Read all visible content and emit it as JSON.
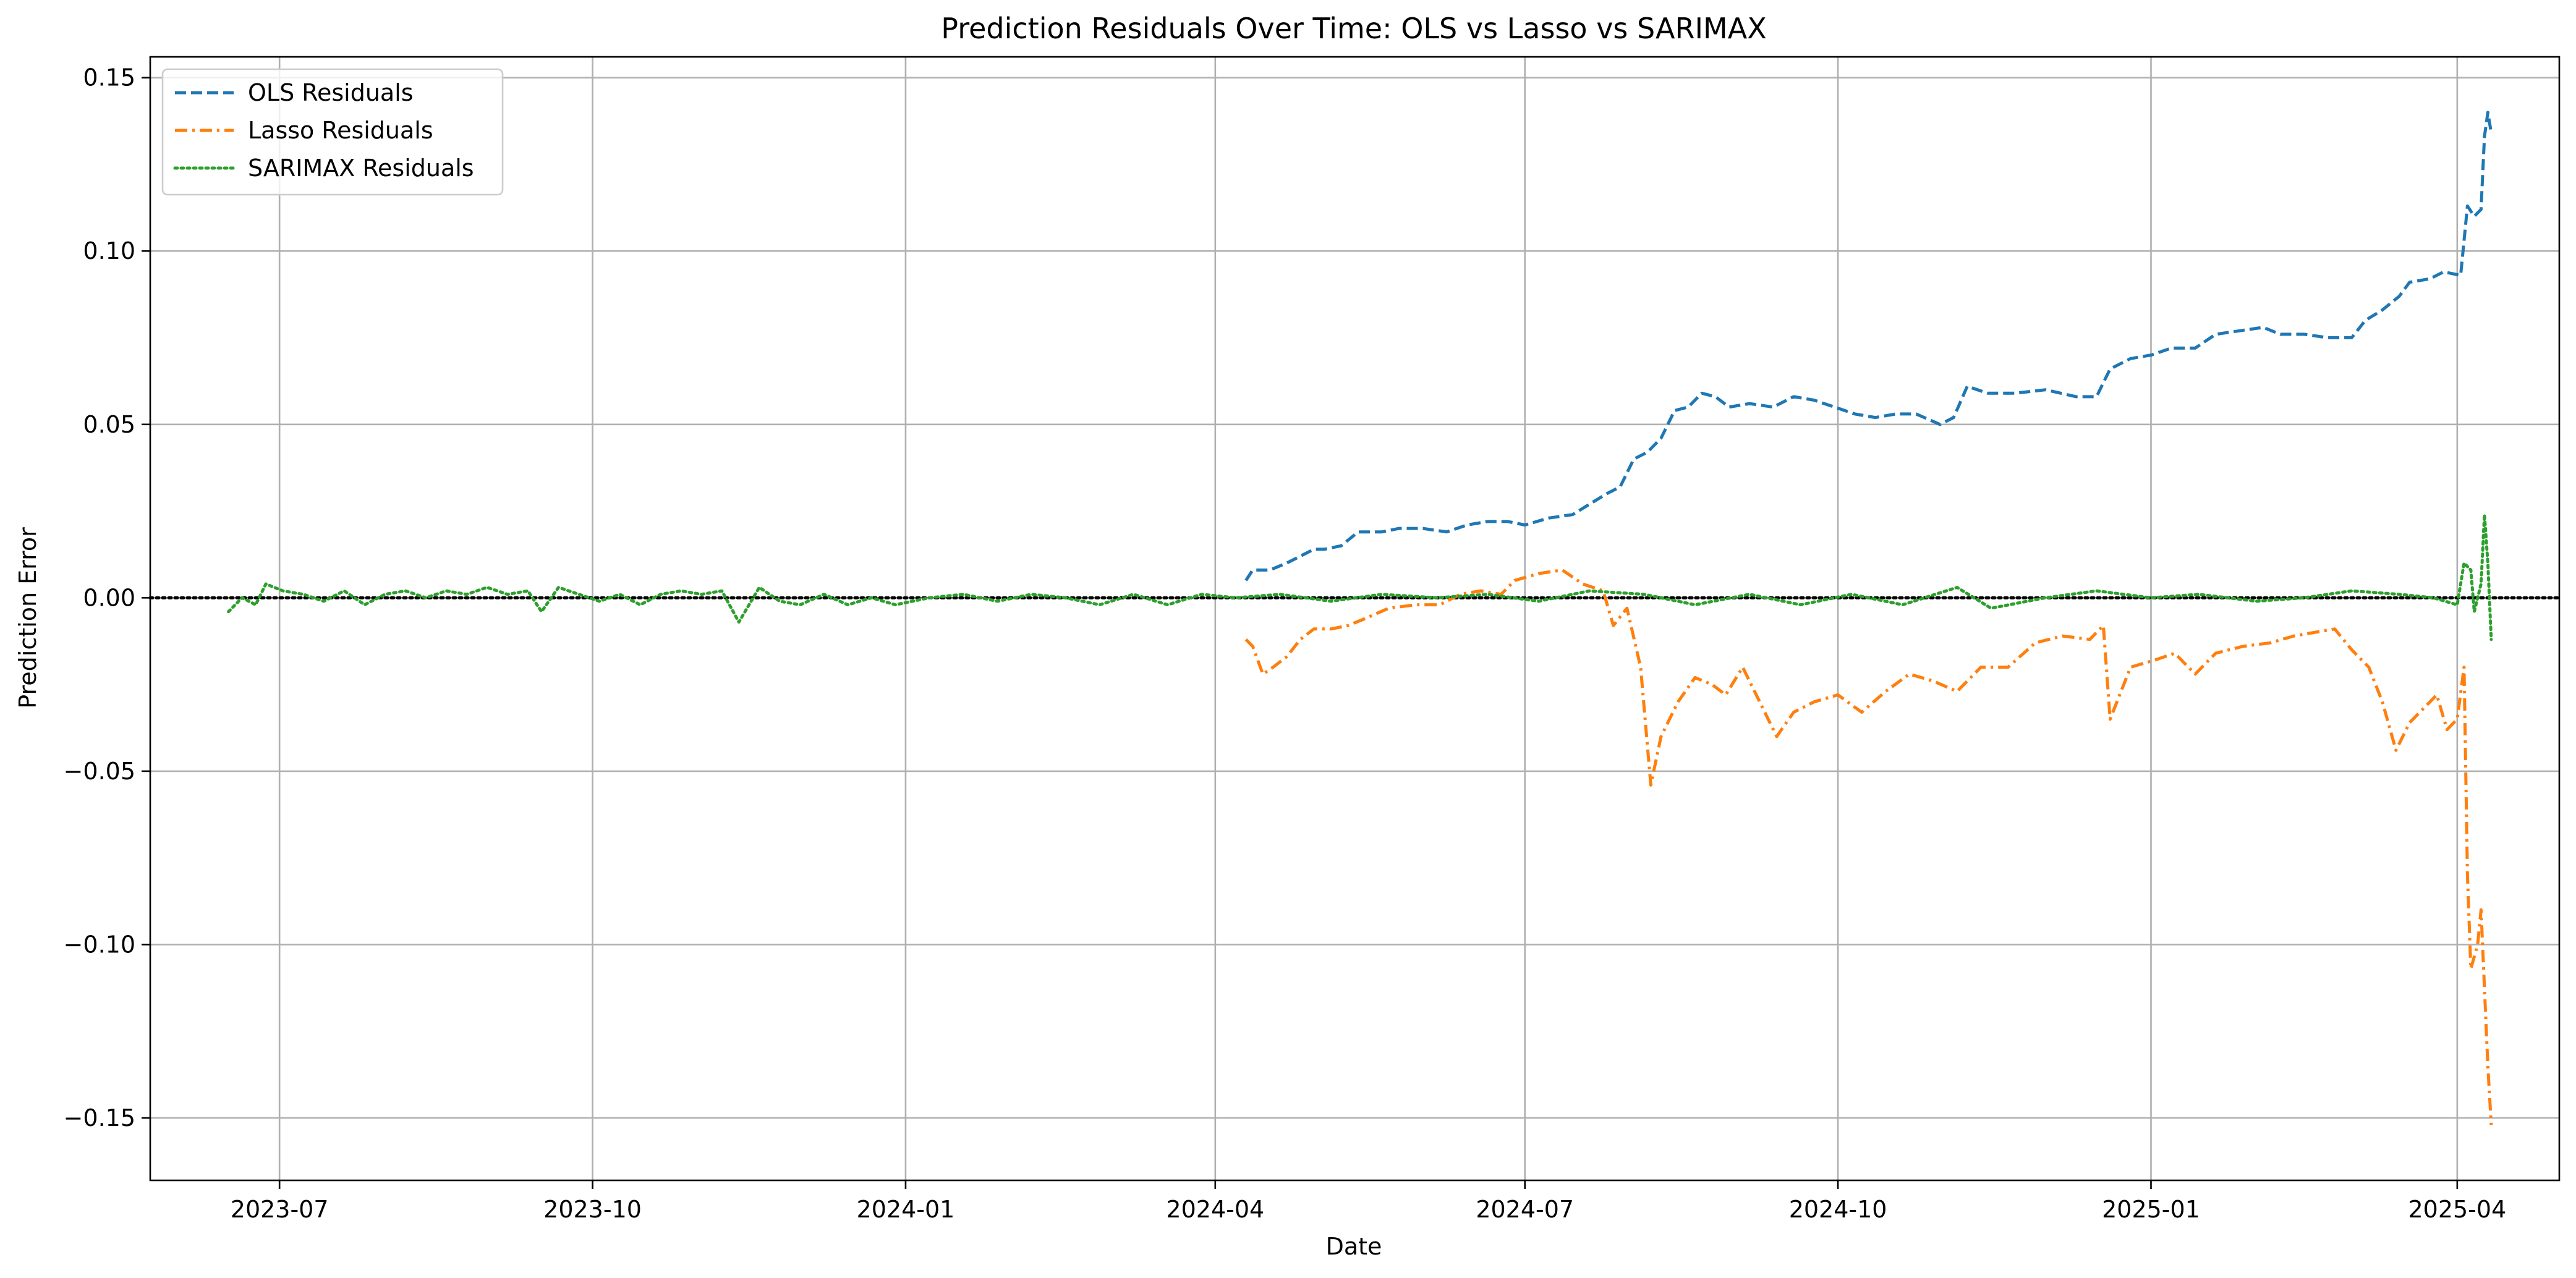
{
  "chart_data": {
    "type": "line",
    "title": "Prediction Residuals Over Time: OLS vs Lasso vs SARIMAX",
    "xlabel": "Date",
    "ylabel": "Prediction Error",
    "x_axis": "date",
    "xlim": [
      "2023-05-24",
      "2025-05-01"
    ],
    "ylim": [
      -0.168,
      0.156
    ],
    "x_ticks": [
      "2023-07",
      "2023-10",
      "2024-01",
      "2024-04",
      "2024-07",
      "2024-10",
      "2025-01",
      "2025-04"
    ],
    "x_tick_dates": [
      "2023-07-01",
      "2023-10-01",
      "2024-01-01",
      "2024-04-01",
      "2024-07-01",
      "2024-10-01",
      "2025-01-01",
      "2025-04-01"
    ],
    "y_ticks": [
      -0.15,
      -0.1,
      -0.05,
      0.0,
      0.05,
      0.1,
      0.15
    ],
    "y_tick_labels": [
      "−0.15",
      "−0.10",
      "−0.05",
      "0.00",
      "0.05",
      "0.10",
      "0.15"
    ],
    "grid": true,
    "legend_position": "top-left",
    "reference_line": {
      "y": 0.0,
      "style": "dotted",
      "color": "#000000"
    },
    "series": [
      {
        "name": "OLS Residuals",
        "color": "#1f77b4",
        "dash": "dashed",
        "points": [
          [
            "2024-04-10",
            0.005
          ],
          [
            "2024-04-12",
            0.008
          ],
          [
            "2024-04-17",
            0.008
          ],
          [
            "2024-04-22",
            0.01
          ],
          [
            "2024-04-26",
            0.012
          ],
          [
            "2024-04-30",
            0.014
          ],
          [
            "2024-05-03",
            0.014
          ],
          [
            "2024-05-08",
            0.015
          ],
          [
            "2024-05-13",
            0.019
          ],
          [
            "2024-05-20",
            0.019
          ],
          [
            "2024-05-25",
            0.02
          ],
          [
            "2024-06-01",
            0.02
          ],
          [
            "2024-06-08",
            0.019
          ],
          [
            "2024-06-14",
            0.021
          ],
          [
            "2024-06-20",
            0.022
          ],
          [
            "2024-06-26",
            0.022
          ],
          [
            "2024-07-01",
            0.021
          ],
          [
            "2024-07-08",
            0.023
          ],
          [
            "2024-07-15",
            0.024
          ],
          [
            "2024-07-20",
            0.027
          ],
          [
            "2024-07-25",
            0.03
          ],
          [
            "2024-07-29",
            0.032
          ],
          [
            "2024-08-02",
            0.04
          ],
          [
            "2024-08-06",
            0.042
          ],
          [
            "2024-08-10",
            0.046
          ],
          [
            "2024-08-14",
            0.054
          ],
          [
            "2024-08-18",
            0.055
          ],
          [
            "2024-08-22",
            0.059
          ],
          [
            "2024-08-26",
            0.058
          ],
          [
            "2024-08-30",
            0.055
          ],
          [
            "2024-09-05",
            0.056
          ],
          [
            "2024-09-12",
            0.055
          ],
          [
            "2024-09-18",
            0.058
          ],
          [
            "2024-09-24",
            0.057
          ],
          [
            "2024-09-30",
            0.055
          ],
          [
            "2024-10-06",
            0.053
          ],
          [
            "2024-10-12",
            0.052
          ],
          [
            "2024-10-18",
            0.053
          ],
          [
            "2024-10-24",
            0.053
          ],
          [
            "2024-10-31",
            0.05
          ],
          [
            "2024-11-04",
            0.052
          ],
          [
            "2024-11-08",
            0.061
          ],
          [
            "2024-11-14",
            0.059
          ],
          [
            "2024-11-22",
            0.059
          ],
          [
            "2024-12-01",
            0.06
          ],
          [
            "2024-12-10",
            0.058
          ],
          [
            "2024-12-16",
            0.058
          ],
          [
            "2024-12-20",
            0.066
          ],
          [
            "2024-12-26",
            0.069
          ],
          [
            "2025-01-01",
            0.07
          ],
          [
            "2025-01-07",
            0.072
          ],
          [
            "2025-01-14",
            0.072
          ],
          [
            "2025-01-20",
            0.076
          ],
          [
            "2025-01-27",
            0.077
          ],
          [
            "2025-02-03",
            0.078
          ],
          [
            "2025-02-08",
            0.076
          ],
          [
            "2025-02-15",
            0.076
          ],
          [
            "2025-02-22",
            0.075
          ],
          [
            "2025-03-01",
            0.075
          ],
          [
            "2025-03-05",
            0.08
          ],
          [
            "2025-03-10",
            0.083
          ],
          [
            "2025-03-15",
            0.087
          ],
          [
            "2025-03-18",
            0.091
          ],
          [
            "2025-03-24",
            0.092
          ],
          [
            "2025-03-28",
            0.094
          ],
          [
            "2025-04-02",
            0.093
          ],
          [
            "2025-04-04",
            0.113
          ],
          [
            "2025-04-06",
            0.11
          ],
          [
            "2025-04-08",
            0.112
          ],
          [
            "2025-04-09",
            0.133
          ],
          [
            "2025-04-10",
            0.14
          ],
          [
            "2025-04-11",
            0.134
          ]
        ]
      },
      {
        "name": "Lasso Residuals",
        "color": "#ff7f0e",
        "dash": "dashdot",
        "points": [
          [
            "2024-04-10",
            -0.012
          ],
          [
            "2024-04-12",
            -0.014
          ],
          [
            "2024-04-15",
            -0.022
          ],
          [
            "2024-04-18",
            -0.02
          ],
          [
            "2024-04-22",
            -0.017
          ],
          [
            "2024-04-26",
            -0.012
          ],
          [
            "2024-04-30",
            -0.009
          ],
          [
            "2024-05-05",
            -0.009
          ],
          [
            "2024-05-10",
            -0.008
          ],
          [
            "2024-05-15",
            -0.006
          ],
          [
            "2024-05-22",
            -0.003
          ],
          [
            "2024-05-30",
            -0.002
          ],
          [
            "2024-06-06",
            -0.002
          ],
          [
            "2024-06-12",
            0.001
          ],
          [
            "2024-06-18",
            0.002
          ],
          [
            "2024-06-24",
            0.001
          ],
          [
            "2024-06-28",
            0.005
          ],
          [
            "2024-07-05",
            0.007
          ],
          [
            "2024-07-12",
            0.008
          ],
          [
            "2024-07-18",
            0.004
          ],
          [
            "2024-07-24",
            0.002
          ],
          [
            "2024-07-27",
            -0.008
          ],
          [
            "2024-07-31",
            -0.003
          ],
          [
            "2024-08-04",
            -0.02
          ],
          [
            "2024-08-07",
            -0.054
          ],
          [
            "2024-08-10",
            -0.04
          ],
          [
            "2024-08-15",
            -0.03
          ],
          [
            "2024-08-20",
            -0.023
          ],
          [
            "2024-08-25",
            -0.025
          ],
          [
            "2024-08-29",
            -0.028
          ],
          [
            "2024-09-03",
            -0.02
          ],
          [
            "2024-09-08",
            -0.03
          ],
          [
            "2024-09-13",
            -0.04
          ],
          [
            "2024-09-18",
            -0.033
          ],
          [
            "2024-09-24",
            -0.03
          ],
          [
            "2024-10-01",
            -0.028
          ],
          [
            "2024-10-08",
            -0.033
          ],
          [
            "2024-10-15",
            -0.027
          ],
          [
            "2024-10-22",
            -0.022
          ],
          [
            "2024-10-29",
            -0.024
          ],
          [
            "2024-11-05",
            -0.027
          ],
          [
            "2024-11-12",
            -0.02
          ],
          [
            "2024-11-20",
            -0.02
          ],
          [
            "2024-11-28",
            -0.013
          ],
          [
            "2024-12-06",
            -0.011
          ],
          [
            "2024-12-14",
            -0.012
          ],
          [
            "2024-12-18",
            -0.008
          ],
          [
            "2024-12-20",
            -0.035
          ],
          [
            "2024-12-26",
            -0.02
          ],
          [
            "2025-01-02",
            -0.018
          ],
          [
            "2025-01-08",
            -0.016
          ],
          [
            "2025-01-14",
            -0.022
          ],
          [
            "2025-01-20",
            -0.016
          ],
          [
            "2025-01-28",
            -0.014
          ],
          [
            "2025-02-05",
            -0.013
          ],
          [
            "2025-02-12",
            -0.011
          ],
          [
            "2025-02-18",
            -0.01
          ],
          [
            "2025-02-24",
            -0.009
          ],
          [
            "2025-03-01",
            -0.015
          ],
          [
            "2025-03-06",
            -0.02
          ],
          [
            "2025-03-10",
            -0.03
          ],
          [
            "2025-03-14",
            -0.044
          ],
          [
            "2025-03-18",
            -0.036
          ],
          [
            "2025-03-22",
            -0.032
          ],
          [
            "2025-03-26",
            -0.028
          ],
          [
            "2025-03-29",
            -0.038
          ],
          [
            "2025-04-01",
            -0.035
          ],
          [
            "2025-04-03",
            -0.02
          ],
          [
            "2025-04-04",
            -0.08
          ],
          [
            "2025-04-05",
            -0.107
          ],
          [
            "2025-04-07",
            -0.1
          ],
          [
            "2025-04-08",
            -0.09
          ],
          [
            "2025-04-10",
            -0.135
          ],
          [
            "2025-04-11",
            -0.152
          ]
        ]
      },
      {
        "name": "SARIMAX Residuals",
        "color": "#2ca02c",
        "dash": "dotted",
        "points": [
          [
            "2023-06-16",
            -0.004
          ],
          [
            "2023-06-20",
            0.0
          ],
          [
            "2023-06-24",
            -0.002
          ],
          [
            "2023-06-27",
            0.004
          ],
          [
            "2023-07-02",
            0.002
          ],
          [
            "2023-07-08",
            0.001
          ],
          [
            "2023-07-14",
            -0.001
          ],
          [
            "2023-07-20",
            0.002
          ],
          [
            "2023-07-26",
            -0.002
          ],
          [
            "2023-08-01",
            0.001
          ],
          [
            "2023-08-07",
            0.002
          ],
          [
            "2023-08-13",
            0.0
          ],
          [
            "2023-08-19",
            0.002
          ],
          [
            "2023-08-25",
            0.001
          ],
          [
            "2023-08-31",
            0.003
          ],
          [
            "2023-09-06",
            0.001
          ],
          [
            "2023-09-12",
            0.002
          ],
          [
            "2023-09-16",
            -0.004
          ],
          [
            "2023-09-21",
            0.003
          ],
          [
            "2023-09-27",
            0.001
          ],
          [
            "2023-10-03",
            -0.001
          ],
          [
            "2023-10-09",
            0.001
          ],
          [
            "2023-10-15",
            -0.002
          ],
          [
            "2023-10-21",
            0.001
          ],
          [
            "2023-10-27",
            0.002
          ],
          [
            "2023-11-02",
            0.001
          ],
          [
            "2023-11-08",
            0.002
          ],
          [
            "2023-11-13",
            -0.007
          ],
          [
            "2023-11-19",
            0.003
          ],
          [
            "2023-11-25",
            -0.001
          ],
          [
            "2023-12-01",
            -0.002
          ],
          [
            "2023-12-08",
            0.001
          ],
          [
            "2023-12-15",
            -0.002
          ],
          [
            "2023-12-22",
            0.0
          ],
          [
            "2023-12-29",
            -0.002
          ],
          [
            "2024-01-08",
            0.0
          ],
          [
            "2024-01-18",
            0.001
          ],
          [
            "2024-01-28",
            -0.001
          ],
          [
            "2024-02-07",
            0.001
          ],
          [
            "2024-02-17",
            0.0
          ],
          [
            "2024-02-27",
            -0.002
          ],
          [
            "2024-03-08",
            0.001
          ],
          [
            "2024-03-18",
            -0.002
          ],
          [
            "2024-03-28",
            0.001
          ],
          [
            "2024-04-07",
            0.0
          ],
          [
            "2024-04-20",
            0.001
          ],
          [
            "2024-05-05",
            -0.001
          ],
          [
            "2024-05-20",
            0.001
          ],
          [
            "2024-06-05",
            0.0
          ],
          [
            "2024-06-20",
            0.001
          ],
          [
            "2024-07-05",
            -0.001
          ],
          [
            "2024-07-20",
            0.002
          ],
          [
            "2024-08-05",
            0.001
          ],
          [
            "2024-08-20",
            -0.002
          ],
          [
            "2024-09-05",
            0.001
          ],
          [
            "2024-09-20",
            -0.002
          ],
          [
            "2024-10-05",
            0.001
          ],
          [
            "2024-10-20",
            -0.002
          ],
          [
            "2024-11-05",
            0.003
          ],
          [
            "2024-11-15",
            -0.003
          ],
          [
            "2024-12-01",
            0.0
          ],
          [
            "2024-12-16",
            0.002
          ],
          [
            "2025-01-01",
            0.0
          ],
          [
            "2025-01-15",
            0.001
          ],
          [
            "2025-02-01",
            -0.001
          ],
          [
            "2025-02-15",
            0.0
          ],
          [
            "2025-03-01",
            0.002
          ],
          [
            "2025-03-15",
            0.001
          ],
          [
            "2025-03-25",
            0.0
          ],
          [
            "2025-04-01",
            -0.002
          ],
          [
            "2025-04-03",
            0.01
          ],
          [
            "2025-04-05",
            0.008
          ],
          [
            "2025-04-06",
            -0.004
          ],
          [
            "2025-04-08",
            0.004
          ],
          [
            "2025-04-09",
            0.024
          ],
          [
            "2025-04-10",
            0.01
          ],
          [
            "2025-04-11",
            -0.012
          ]
        ]
      }
    ]
  }
}
